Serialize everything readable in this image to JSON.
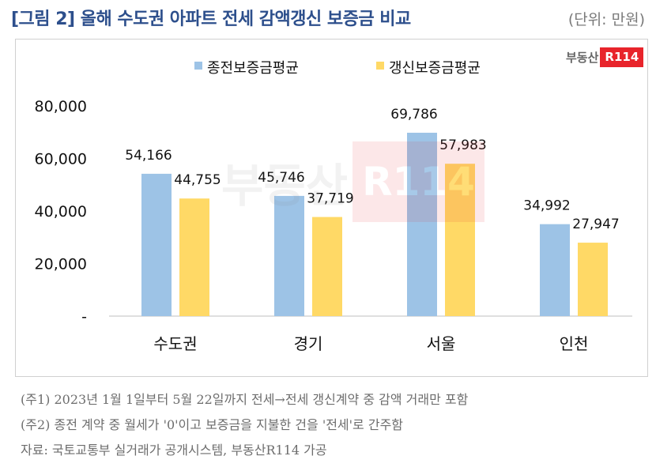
{
  "header": {
    "title": "[그림 2] 올해 수도권 아파트 전세 감액갱신 보증금 비교",
    "unit": "(단위: 만원)"
  },
  "logo": {
    "text": "부동산",
    "badge": "R114"
  },
  "watermark": {
    "text": "부동산",
    "badge": "R114"
  },
  "chart_data": {
    "type": "bar",
    "categories": [
      "수도권",
      "경기",
      "서울",
      "인천"
    ],
    "series": [
      {
        "name": "종전보증금평균",
        "values": [
          54166,
          45746,
          69786,
          34992
        ],
        "labels": [
          "54,166",
          "45,746",
          "69,786",
          "34,992"
        ],
        "color": "#9dc3e6"
      },
      {
        "name": "갱신보증금평균",
        "values": [
          44755,
          37719,
          57983,
          27947
        ],
        "labels": [
          "44,755",
          "37,719",
          "57,983",
          "27,947"
        ],
        "color": "#ffd966"
      }
    ],
    "yticks": [
      {
        "value": 0,
        "label": "-"
      },
      {
        "value": 20000,
        "label": "20,000"
      },
      {
        "value": 40000,
        "label": "40,000"
      },
      {
        "value": 60000,
        "label": "60,000"
      },
      {
        "value": 80000,
        "label": "80,000"
      }
    ],
    "ylim": [
      0,
      80000
    ],
    "grid": false,
    "legend": "top-center"
  },
  "notes": [
    "(주1) 2023년 1월 1일부터 5월 22일까지 전세→전세 갱신계약 중 감액 거래만 포함",
    "(주2) 종전 계약 중 월세가 '0'이고 보증금을 지불한 건을 '전세'로 간주함",
    "자료: 국토교통부 실거래가 공개시스템, 부동산R114 가공"
  ]
}
